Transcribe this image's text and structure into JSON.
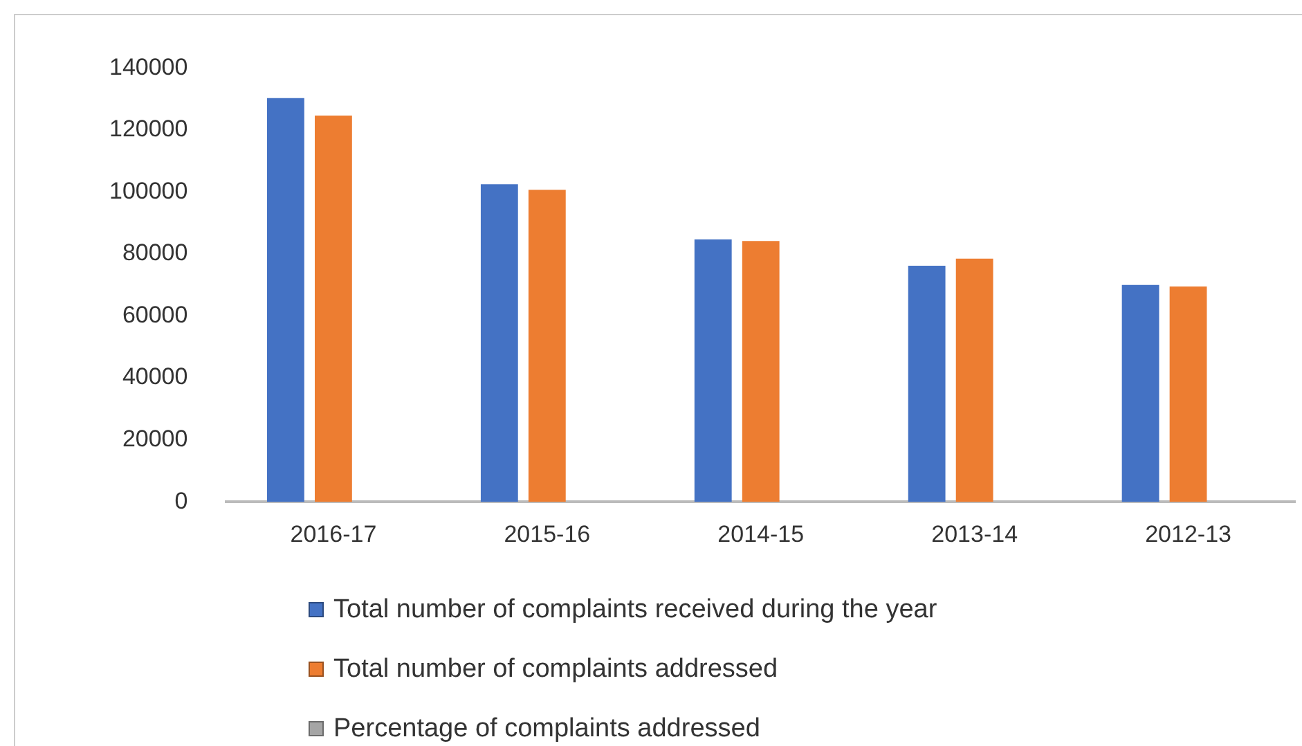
{
  "chart_data": {
    "type": "bar",
    "categories": [
      "2016-17",
      "2015-16",
      "2014-15",
      "2013-14",
      "2012-13"
    ],
    "series": [
      {
        "name": "Total number of complaints received during the year",
        "color": "#4472c4",
        "values": [
          130300,
          102500,
          84700,
          76200,
          70000
        ]
      },
      {
        "name": "Total number of complaints addressed",
        "color": "#ed7d31",
        "values": [
          124700,
          100700,
          84200,
          78500,
          69500
        ]
      },
      {
        "name": "Percentage of complaints addressed",
        "color": "#a5a5a5",
        "values": [
          null,
          null,
          null,
          null,
          null
        ]
      }
    ],
    "ylim": [
      0,
      140000
    ],
    "yticks": [
      0,
      20000,
      40000,
      60000,
      80000,
      100000,
      120000,
      140000
    ],
    "grid": false,
    "legend": "bottom"
  }
}
